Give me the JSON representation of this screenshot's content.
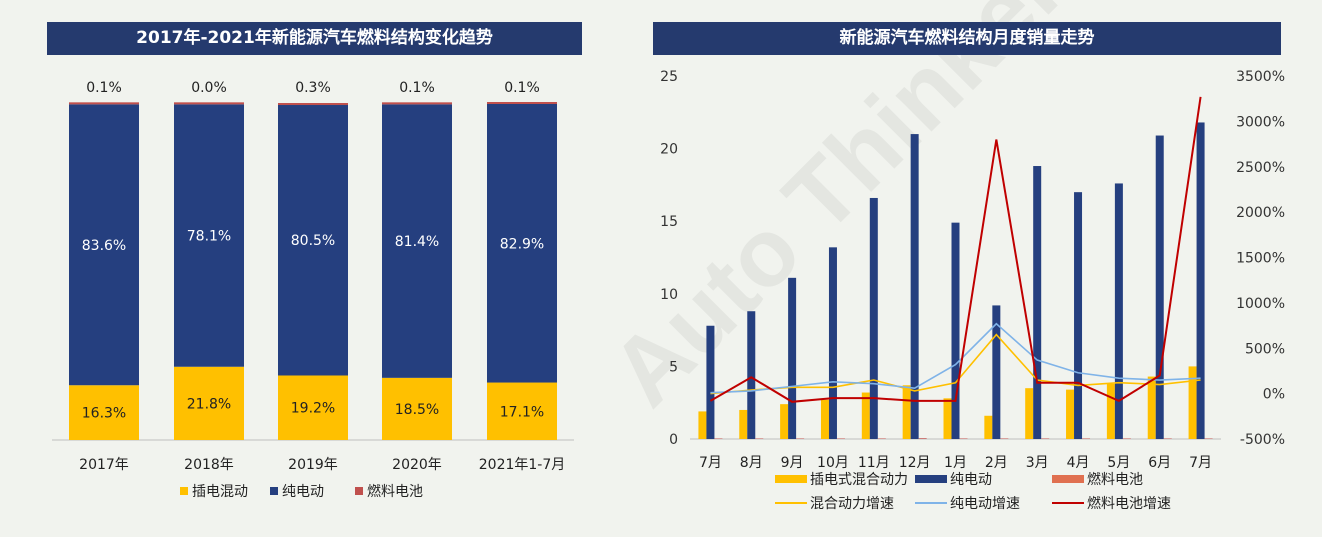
{
  "watermark": "Auto Thinker",
  "left_chart_title": "2017年-2021年新能源汽车燃料结构变化趋势",
  "right_chart_title": "新能源汽车燃料结构月度销量走势",
  "colors": {
    "phev": "#ffc000",
    "bev": "#253f7f",
    "fcev": "#c0504d",
    "fcev_legend": "#e07050",
    "phev_line": "#ffc000",
    "bev_line": "#7fb3e8",
    "fcev_line": "#c00000"
  },
  "chart_data": [
    {
      "type": "bar",
      "stacked": true,
      "percent": true,
      "categories": [
        "2017年",
        "2018年",
        "2019年",
        "2020年",
        "2021年1-7月"
      ],
      "series": [
        {
          "name": "插电混动",
          "values": [
            16.3,
            21.8,
            19.2,
            18.5,
            17.1
          ],
          "labels": [
            "16.3%",
            "21.8%",
            "19.2%",
            "18.5%",
            "17.1%"
          ]
        },
        {
          "name": "纯电动",
          "values": [
            83.6,
            78.1,
            80.5,
            81.4,
            82.9
          ],
          "labels": [
            "83.6%",
            "78.1%",
            "80.5%",
            "81.4%",
            "82.9%"
          ]
        },
        {
          "name": "燃料电池",
          "values": [
            0.1,
            0.0,
            0.3,
            0.1,
            0.1
          ],
          "labels": [
            "0.1%",
            "0.0%",
            "0.3%",
            "0.1%",
            "0.1%"
          ]
        }
      ],
      "legend_position": "bottom"
    },
    {
      "type": "bar+line",
      "categories": [
        "7月",
        "8月",
        "9月",
        "10月",
        "11月",
        "12月",
        "1月",
        "2月",
        "3月",
        "4月",
        "5月",
        "6月",
        "7月"
      ],
      "ylim": [
        0,
        25
      ],
      "yticks": [
        "0",
        "5",
        "10",
        "15",
        "20",
        "25"
      ],
      "y2lim": [
        -500,
        3500
      ],
      "y2ticks": [
        "-500%",
        "0%",
        "500%",
        "1000%",
        "1500%",
        "2000%",
        "2500%",
        "3000%",
        "3500%"
      ],
      "bar_series": [
        {
          "name": "插电式混合动力",
          "values": [
            1.9,
            2.0,
            2.4,
            2.7,
            3.2,
            3.7,
            2.8,
            1.6,
            3.5,
            3.4,
            3.8,
            4.3,
            5.0
          ]
        },
        {
          "name": "纯电动",
          "values": [
            7.8,
            8.8,
            11.1,
            13.2,
            16.6,
            21.0,
            14.9,
            9.2,
            18.8,
            17.0,
            17.6,
            20.9,
            21.8
          ]
        },
        {
          "name": "燃料电池",
          "values": [
            0.01,
            0.01,
            0.01,
            0.02,
            0.02,
            0.05,
            0.01,
            0.01,
            0.02,
            0.02,
            0.02,
            0.02,
            0.03
          ]
        }
      ],
      "line_series": [
        {
          "name": "混合动力增速",
          "values": [
            0,
            40,
            70,
            70,
            150,
            30,
            120,
            650,
            150,
            90,
            120,
            100,
            150
          ]
        },
        {
          "name": "纯电动增速",
          "values": [
            10,
            30,
            80,
            130,
            110,
            60,
            320,
            770,
            370,
            230,
            170,
            150,
            170
          ]
        },
        {
          "name": "燃料电池增速",
          "values": [
            -80,
            180,
            -90,
            -50,
            -50,
            -80,
            -80,
            2800,
            120,
            120,
            -80,
            200,
            3270
          ]
        }
      ],
      "legend_position": "bottom"
    }
  ]
}
